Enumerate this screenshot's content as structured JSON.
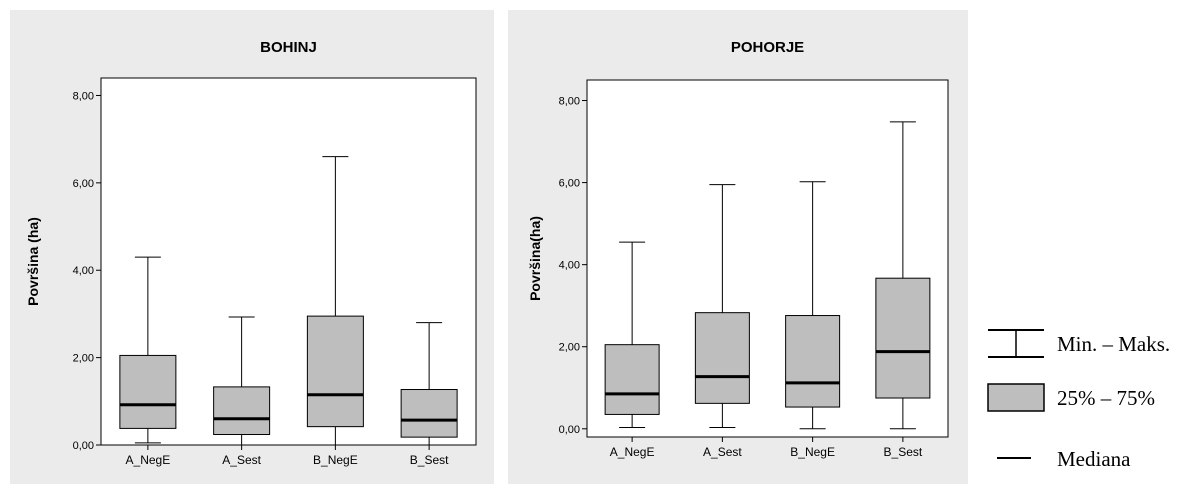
{
  "chart_data": [
    {
      "type": "boxplot",
      "title": "BOHINJ",
      "xlabel": "",
      "ylabel": "Površina (ha)",
      "ylim": [
        0,
        8.4
      ],
      "yticks": [
        0,
        2,
        4,
        6,
        8
      ],
      "ytick_labels": [
        "0,00",
        "2,00",
        "4,00",
        "6,00",
        "8,00"
      ],
      "categories": [
        "A_NegE",
        "A_Sest",
        "B_NegE",
        "B_Sest"
      ],
      "boxes": [
        {
          "min": 0.05,
          "q1": 0.38,
          "median": 0.92,
          "q3": 2.05,
          "max": 4.3
        },
        {
          "min": 0.0,
          "q1": 0.24,
          "median": 0.6,
          "q3": 1.33,
          "max": 2.93
        },
        {
          "min": 0.0,
          "q1": 0.42,
          "median": 1.15,
          "q3": 2.95,
          "max": 6.6
        },
        {
          "min": 0.0,
          "q1": 0.18,
          "median": 0.57,
          "q3": 1.27,
          "max": 2.8
        }
      ],
      "grid": false
    },
    {
      "type": "boxplot",
      "title": "POHORJE",
      "xlabel": "",
      "ylabel": "Površina(ha)",
      "ylim": [
        -0.2,
        8.5
      ],
      "yticks": [
        0,
        2,
        4,
        6,
        8
      ],
      "ytick_labels": [
        "0,00",
        "2,00",
        "4,00",
        "6,00",
        "8,00"
      ],
      "categories": [
        "A_NegE",
        "A_Sest",
        "B_NegE",
        "B_Sest"
      ],
      "boxes": [
        {
          "min": 0.03,
          "q1": 0.35,
          "median": 0.85,
          "q3": 2.05,
          "max": 4.55
        },
        {
          "min": 0.03,
          "q1": 0.62,
          "median": 1.27,
          "q3": 2.83,
          "max": 5.95
        },
        {
          "min": 0.0,
          "q1": 0.53,
          "median": 1.12,
          "q3": 2.76,
          "max": 6.02
        },
        {
          "min": 0.0,
          "q1": 0.75,
          "median": 1.88,
          "q3": 3.67,
          "max": 7.48
        }
      ],
      "grid": false
    }
  ],
  "legend": {
    "minmax_label": "Min. – Maks.",
    "iqr_label": "25% – 75%",
    "median_label": "Mediana"
  },
  "colors": {
    "panel_bg": "#ebebeb",
    "plot_bg": "#ffffff",
    "box_fill": "#bebebe",
    "line": "#000000"
  }
}
